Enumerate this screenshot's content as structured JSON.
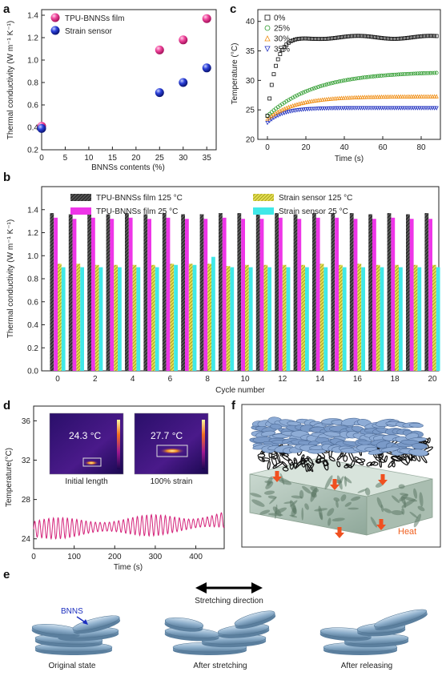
{
  "chart_data": [
    {
      "panel": "a",
      "type": "scatter",
      "xlabel": "BNNSs contents (%)",
      "ylabel": "Thermal conductivity (W m⁻¹ K⁻¹)",
      "xlim": [
        0,
        37
      ],
      "ylim": [
        0.2,
        1.45
      ],
      "xticks": [
        "0",
        "5",
        "10",
        "15",
        "20",
        "25",
        "30",
        "35"
      ],
      "yticks": [
        "0.2",
        "0.4",
        "0.6",
        "0.8",
        "1.0",
        "1.2",
        "1.4"
      ],
      "legend_position": "top-left",
      "series": [
        {
          "name": "TPU-BNNSs film",
          "color": "#e8258b",
          "x": [
            0,
            25,
            30,
            35
          ],
          "y": [
            0.41,
            1.09,
            1.18,
            1.37
          ]
        },
        {
          "name": "Strain sensor",
          "color": "#1c2fbf",
          "x": [
            0,
            25,
            30,
            35
          ],
          "y": [
            0.39,
            0.71,
            0.8,
            0.93
          ]
        }
      ]
    },
    {
      "panel": "c",
      "type": "scatter",
      "xlabel": "Time (s)",
      "ylabel": "Temperature (°C)",
      "xlim": [
        -5,
        90
      ],
      "ylim": [
        20,
        42
      ],
      "xticks": [
        "0",
        "20",
        "40",
        "60",
        "80"
      ],
      "yticks": [
        "20",
        "25",
        "30",
        "35",
        "40"
      ],
      "legend_position": "top-left",
      "series": [
        {
          "name": "0%",
          "color": "#111111",
          "marker": "square",
          "start": 24.0,
          "end": 37.3,
          "tau": 4.5
        },
        {
          "name": "25%",
          "color": "#2a9a2a",
          "marker": "circle",
          "start": 24.0,
          "end": 31.5,
          "tau": 25
        },
        {
          "name": "30%",
          "color": "#f08c10",
          "marker": "triangle-up",
          "start": 23.5,
          "end": 27.3,
          "tau": 15
        },
        {
          "name": "35%",
          "color": "#2030c0",
          "marker": "triangle-down",
          "start": 22.8,
          "end": 25.3,
          "tau": 8
        }
      ]
    },
    {
      "panel": "b",
      "type": "bar",
      "xlabel": "Cycle number",
      "ylabel": "Thermal conductivity (W m⁻¹ K⁻¹)",
      "ylim": [
        0,
        1.6
      ],
      "yticks": [
        "0.0",
        "0.2",
        "0.4",
        "0.6",
        "0.8",
        "1.0",
        "1.2",
        "1.4"
      ],
      "xticks": [
        "0",
        "2",
        "4",
        "6",
        "8",
        "10",
        "12",
        "14",
        "16",
        "18",
        "20"
      ],
      "categories": [
        0,
        1,
        2,
        3,
        4,
        5,
        6,
        7,
        8,
        9,
        10,
        11,
        12,
        13,
        14,
        15,
        16,
        17,
        18,
        19,
        20
      ],
      "series": [
        {
          "name": "TPU-BNNSs film 125 °C",
          "color": "#3a3a3a",
          "pattern": "hatch-dark",
          "values": [
            1.37,
            1.36,
            1.37,
            1.36,
            1.37,
            1.36,
            1.37,
            1.36,
            1.36,
            1.37,
            1.37,
            1.36,
            1.37,
            1.36,
            1.37,
            1.37,
            1.37,
            1.36,
            1.37,
            1.36,
            1.37
          ]
        },
        {
          "name": "TPU-BNNSs film 25 °C",
          "color": "#ee35e8",
          "pattern": "solid",
          "values": [
            1.33,
            1.32,
            1.33,
            1.32,
            1.33,
            1.32,
            1.33,
            1.32,
            1.32,
            1.33,
            1.32,
            1.32,
            1.33,
            1.32,
            1.33,
            1.33,
            1.32,
            1.32,
            1.33,
            1.32,
            1.32
          ]
        },
        {
          "name": "Strain sensor 125 °C",
          "color": "#bdb828",
          "pattern": "hatch-yellow",
          "values": [
            0.93,
            0.93,
            0.92,
            0.92,
            0.92,
            0.92,
            0.93,
            0.93,
            0.93,
            0.91,
            0.92,
            0.92,
            0.92,
            0.92,
            0.93,
            0.92,
            0.93,
            0.92,
            0.92,
            0.92,
            0.92
          ]
        },
        {
          "name": "Strain sensor 25 °C",
          "color": "#40e8e8",
          "pattern": "solid",
          "values": [
            0.9,
            0.9,
            0.9,
            0.9,
            0.9,
            0.9,
            0.92,
            0.92,
            0.99,
            0.9,
            0.9,
            0.9,
            0.9,
            0.9,
            0.9,
            0.9,
            0.9,
            0.9,
            0.9,
            0.9,
            0.9
          ]
        }
      ]
    },
    {
      "panel": "d",
      "type": "line",
      "xlabel": "Time (s)",
      "ylabel": "Temperature(°C)",
      "xlim": [
        0,
        470
      ],
      "ylim": [
        23,
        37.5
      ],
      "xticks": [
        "0",
        "100",
        "200",
        "300",
        "400"
      ],
      "yticks": [
        "24",
        "28",
        "32",
        "36"
      ],
      "series": [
        {
          "name": "",
          "color": "#d4237a",
          "baseline": 25.0,
          "baseline_end": 25.6,
          "amplitude": 0.9,
          "period_s": 11.5
        }
      ],
      "insets": [
        {
          "temperature": "24.3 °C",
          "caption": "Initial length"
        },
        {
          "temperature": "27.7 °C",
          "caption": "100% strain"
        }
      ]
    }
  ],
  "labels": {
    "a": "a",
    "b": "b",
    "c": "c",
    "d": "d",
    "e": "e",
    "f": "f"
  },
  "panel_f": {
    "heat_label": "Heat"
  },
  "panel_e": {
    "bnns_label": "BNNS",
    "direction_label": "Stretching direction",
    "captions": [
      "Original state",
      "After stretching",
      "After releasing"
    ]
  }
}
